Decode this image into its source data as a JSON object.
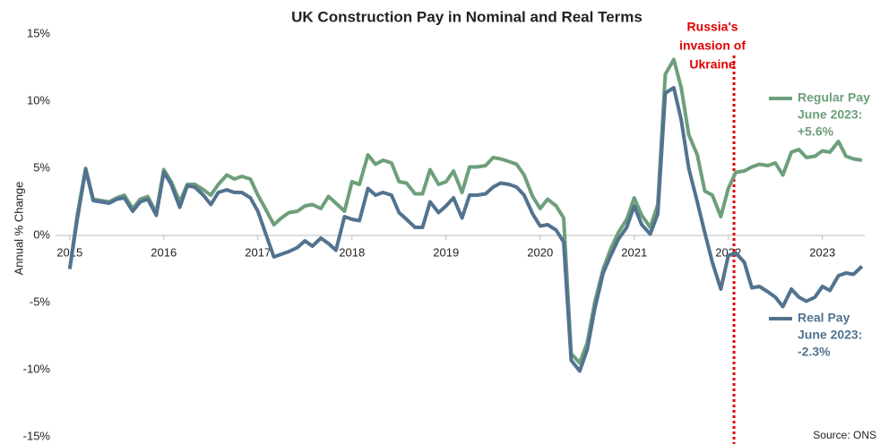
{
  "chart_data": {
    "type": "line",
    "title": "UK Construction Pay in Nominal and Real Terms",
    "y_label": "Annual % Change",
    "source": "Source: ONS",
    "annotation": {
      "lines": [
        "Russia's",
        "invasion of",
        "Ukraine"
      ],
      "x": 2022.06,
      "color": "#e00000"
    },
    "x": [
      2015,
      2015.08,
      2015.17,
      2015.25,
      2015.33,
      2015.42,
      2015.5,
      2015.58,
      2015.67,
      2015.75,
      2015.83,
      2015.92,
      2016,
      2016.08,
      2016.17,
      2016.25,
      2016.33,
      2016.42,
      2016.5,
      2016.58,
      2016.67,
      2016.75,
      2016.83,
      2016.92,
      2017,
      2017.08,
      2017.17,
      2017.25,
      2017.33,
      2017.42,
      2017.5,
      2017.58,
      2017.67,
      2017.75,
      2017.83,
      2017.92,
      2018,
      2018.08,
      2018.17,
      2018.25,
      2018.33,
      2018.42,
      2018.5,
      2018.58,
      2018.67,
      2018.75,
      2018.83,
      2018.92,
      2019,
      2019.08,
      2019.17,
      2019.25,
      2019.33,
      2019.42,
      2019.5,
      2019.58,
      2019.67,
      2019.75,
      2019.83,
      2019.92,
      2020,
      2020.08,
      2020.17,
      2020.25,
      2020.33,
      2020.42,
      2020.5,
      2020.58,
      2020.67,
      2020.75,
      2020.83,
      2020.92,
      2021,
      2021.08,
      2021.17,
      2021.25,
      2021.33,
      2021.42,
      2021.5,
      2021.58,
      2021.67,
      2021.75,
      2021.83,
      2021.92,
      2022,
      2022.08,
      2022.17,
      2022.25,
      2022.33,
      2022.42,
      2022.5,
      2022.58,
      2022.67,
      2022.75,
      2022.83,
      2022.92,
      2023,
      2023.08,
      2023.17,
      2023.25,
      2023.33,
      2023.42
    ],
    "series": [
      {
        "name": "Regular Pay",
        "label_lines": [
          "Regular Pay",
          "June 2023:",
          "+5.6%"
        ],
        "color": "#6d9f7b",
        "values": [
          -2.5,
          1.5,
          5.0,
          2.7,
          2.6,
          2.5,
          2.8,
          3.0,
          2.0,
          2.7,
          2.9,
          1.7,
          4.9,
          4.0,
          2.5,
          3.8,
          3.8,
          3.4,
          3.0,
          3.8,
          4.5,
          4.2,
          4.4,
          4.2,
          3.0,
          2.0,
          0.8,
          1.3,
          1.7,
          1.8,
          2.2,
          2.3,
          2.0,
          2.9,
          2.4,
          1.8,
          4.0,
          3.8,
          6.0,
          5.3,
          5.6,
          5.4,
          4.0,
          3.9,
          3.1,
          3.1,
          4.9,
          3.8,
          4.0,
          4.8,
          3.2,
          5.1,
          5.1,
          5.2,
          5.8,
          5.7,
          5.5,
          5.3,
          4.5,
          2.9,
          2.0,
          2.7,
          2.2,
          1.3,
          -8.8,
          -9.5,
          -8.0,
          -5.0,
          -2.5,
          -1.0,
          0.2,
          1.2,
          2.8,
          1.5,
          0.6,
          2.3,
          12.0,
          13.1,
          11.0,
          7.5,
          6.0,
          3.3,
          3.0,
          1.4,
          3.5,
          4.7,
          4.8,
          5.1,
          5.3,
          5.2,
          5.4,
          4.5,
          6.2,
          6.4,
          5.8,
          5.9,
          6.3,
          6.2,
          7.0,
          5.9,
          5.7,
          5.6
        ]
      },
      {
        "name": "Real Pay",
        "label_lines": [
          "Real Pay",
          "June 2023:",
          "-2.3%"
        ],
        "color": "#52738f",
        "values": [
          -2.5,
          1.2,
          4.9,
          2.6,
          2.5,
          2.4,
          2.7,
          2.8,
          1.8,
          2.5,
          2.7,
          1.5,
          4.7,
          3.8,
          2.1,
          3.7,
          3.6,
          3.0,
          2.3,
          3.2,
          3.4,
          3.2,
          3.2,
          2.8,
          1.8,
          0.2,
          -1.6,
          -1.4,
          -1.2,
          -0.9,
          -0.4,
          -0.8,
          -0.2,
          -0.6,
          -1.1,
          1.4,
          1.2,
          1.1,
          3.5,
          3.0,
          3.2,
          3.0,
          1.7,
          1.2,
          0.6,
          0.6,
          2.5,
          1.7,
          2.2,
          2.8,
          1.3,
          3.0,
          3.0,
          3.1,
          3.6,
          3.9,
          3.8,
          3.6,
          3.0,
          1.6,
          0.7,
          0.8,
          0.4,
          -0.5,
          -9.3,
          -10.1,
          -8.5,
          -5.5,
          -2.8,
          -1.5,
          -0.3,
          0.6,
          2.2,
          0.8,
          0.1,
          1.6,
          10.6,
          11.0,
          8.6,
          5.0,
          2.5,
          0.2,
          -2.0,
          -4.0,
          -1.5,
          -1.3,
          -2.0,
          -3.9,
          -3.8,
          -4.2,
          -4.6,
          -5.3,
          -4.0,
          -4.6,
          -4.9,
          -4.6,
          -3.8,
          -4.1,
          -3.0,
          -2.8,
          -2.9,
          -2.3
        ]
      }
    ],
    "xlim": [
      2014.85,
      2023.45
    ],
    "xticks": [
      2015,
      2016,
      2017,
      2018,
      2019,
      2020,
      2021,
      2022,
      2023
    ],
    "ylim": [
      -15,
      15
    ],
    "yticks": [
      {
        "value": -15,
        "label": "-15%"
      },
      {
        "value": -10,
        "label": "-10%"
      },
      {
        "value": -5,
        "label": "-5%"
      },
      {
        "value": 0,
        "label": "0%"
      },
      {
        "value": 5,
        "label": "5%"
      },
      {
        "value": 10,
        "label": "10%"
      },
      {
        "value": 15,
        "label": "15%"
      }
    ],
    "grid": false
  }
}
